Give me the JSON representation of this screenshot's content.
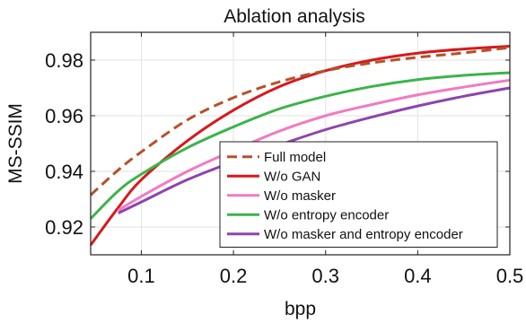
{
  "chart_data": {
    "type": "line",
    "title": "Ablation analysis",
    "xlabel": "bpp",
    "ylabel": "MS-SSIM",
    "xlim": [
      0.045,
      0.5
    ],
    "ylim": [
      0.91,
      0.99
    ],
    "xticks": [
      0.1,
      0.2,
      0.3,
      0.4,
      0.5
    ],
    "xtick_labels": [
      "0.1",
      "0.2",
      "0.3",
      "0.4",
      "0.5"
    ],
    "yticks": [
      0.92,
      0.94,
      0.96,
      0.98
    ],
    "ytick_labels": [
      "0.92",
      "0.94",
      "0.96",
      "0.98"
    ],
    "grid": true,
    "legend_position": "lower-right",
    "series": [
      {
        "name": "Full model",
        "color": "#b5512a",
        "dash": "dashed",
        "x": [
          0.045,
          0.075,
          0.1,
          0.15,
          0.2,
          0.25,
          0.3,
          0.35,
          0.4,
          0.45,
          0.5
        ],
        "y": [
          0.9315,
          0.9405,
          0.947,
          0.9585,
          0.9665,
          0.9722,
          0.9762,
          0.979,
          0.981,
          0.9826,
          0.9845
        ]
      },
      {
        "name": "W/o GAN",
        "color": "#d7191c",
        "dash": "solid",
        "x": [
          0.045,
          0.075,
          0.1,
          0.15,
          0.2,
          0.25,
          0.3,
          0.35,
          0.4,
          0.45,
          0.5
        ],
        "y": [
          0.9135,
          0.927,
          0.937,
          0.951,
          0.962,
          0.9705,
          0.9762,
          0.98,
          0.9825,
          0.984,
          0.985
        ]
      },
      {
        "name": "W/o masker",
        "color": "#f07cc0",
        "dash": "solid",
        "x": [
          0.075,
          0.1,
          0.15,
          0.2,
          0.25,
          0.3,
          0.35,
          0.4,
          0.45,
          0.5
        ],
        "y": [
          0.926,
          0.931,
          0.94,
          0.9475,
          0.9545,
          0.96,
          0.964,
          0.9675,
          0.9703,
          0.9728
        ]
      },
      {
        "name": "W/o entropy encoder",
        "color": "#3cb44b",
        "dash": "solid",
        "x": [
          0.045,
          0.075,
          0.1,
          0.15,
          0.2,
          0.25,
          0.3,
          0.35,
          0.4,
          0.45,
          0.5
        ],
        "y": [
          0.923,
          0.933,
          0.939,
          0.9485,
          0.956,
          0.9625,
          0.967,
          0.9705,
          0.973,
          0.9745,
          0.9755
        ]
      },
      {
        "name": "W/o masker and entropy encoder",
        "color": "#8e44ad",
        "dash": "solid",
        "x": [
          0.075,
          0.1,
          0.15,
          0.2,
          0.25,
          0.3,
          0.35,
          0.4,
          0.45,
          0.5
        ],
        "y": [
          0.925,
          0.929,
          0.937,
          0.9435,
          0.9495,
          0.955,
          0.9595,
          0.9635,
          0.967,
          0.97
        ]
      }
    ]
  }
}
